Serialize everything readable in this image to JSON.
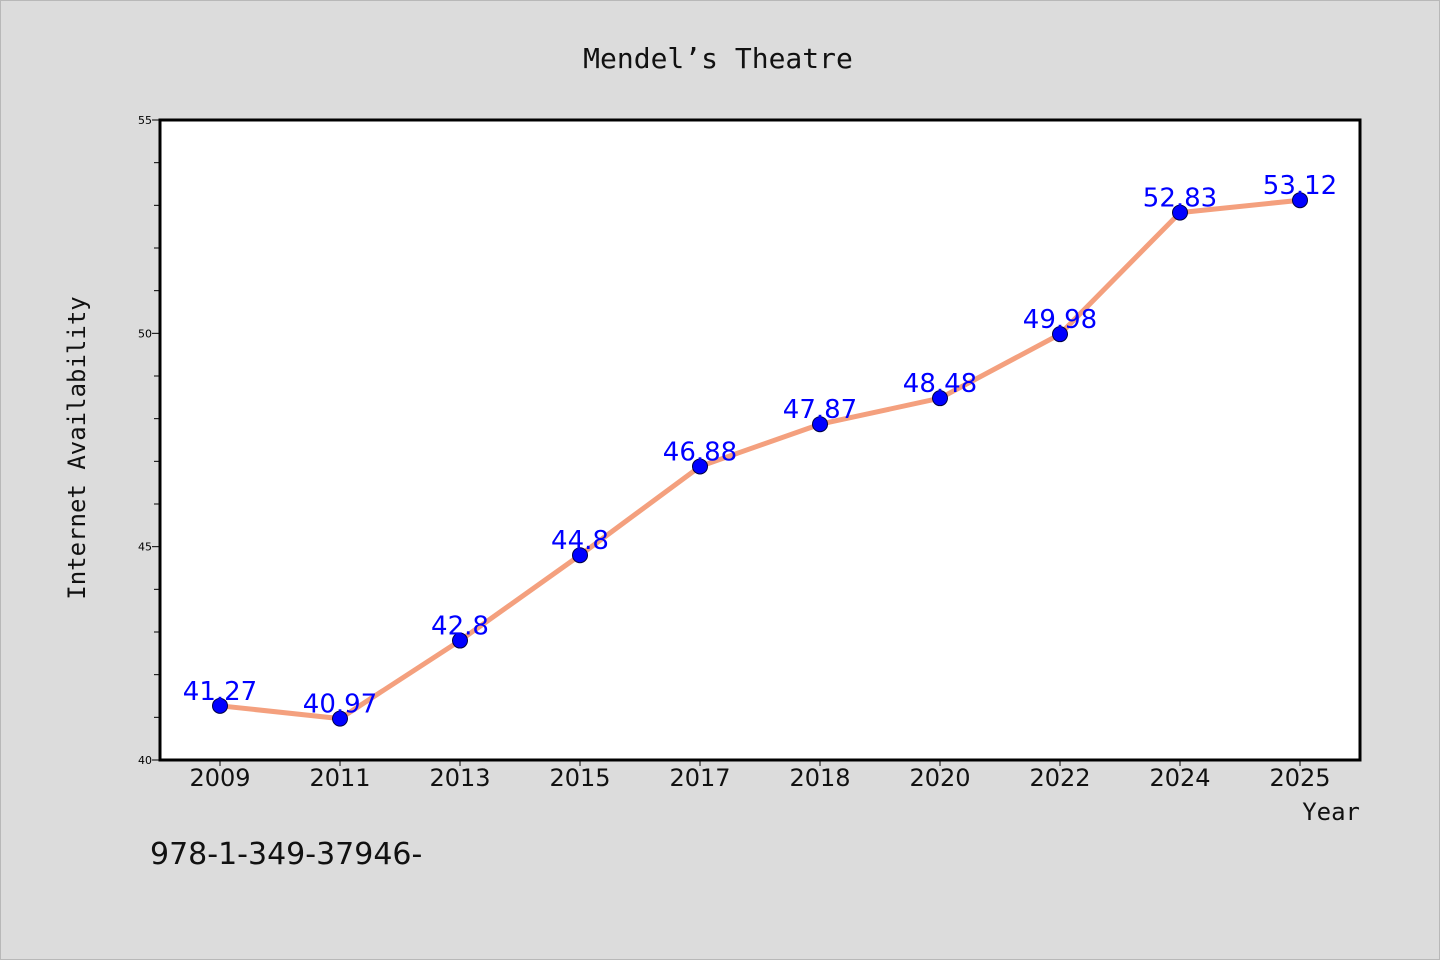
{
  "chart_data": {
    "type": "line",
    "title": "Mendel’s Theatre",
    "xlabel": "Year",
    "ylabel": "Internet Availability",
    "categories": [
      "2009",
      "2011",
      "2013",
      "2015",
      "2017",
      "2018",
      "2020",
      "2022",
      "2024",
      "2025"
    ],
    "values": [
      41.27,
      40.97,
      42.8,
      44.8,
      46.88,
      47.87,
      48.48,
      49.98,
      52.83,
      53.12
    ],
    "data_labels": [
      "41.27",
      "40.97",
      "42.8",
      "44.8",
      "46.88",
      "47.87",
      "48.48",
      "49.98",
      "52.83",
      "53.12"
    ],
    "ylim": [
      40,
      55
    ],
    "y_major_ticks": [
      "40",
      "45",
      "50",
      "55"
    ],
    "grid": false,
    "line_color": "#f4a07e",
    "marker_color": "#0000ff",
    "label_color": "#0000ff",
    "background": "#dcdcdc",
    "plot_background": "#ffffff"
  },
  "annotation": "978-1-349-37946-"
}
